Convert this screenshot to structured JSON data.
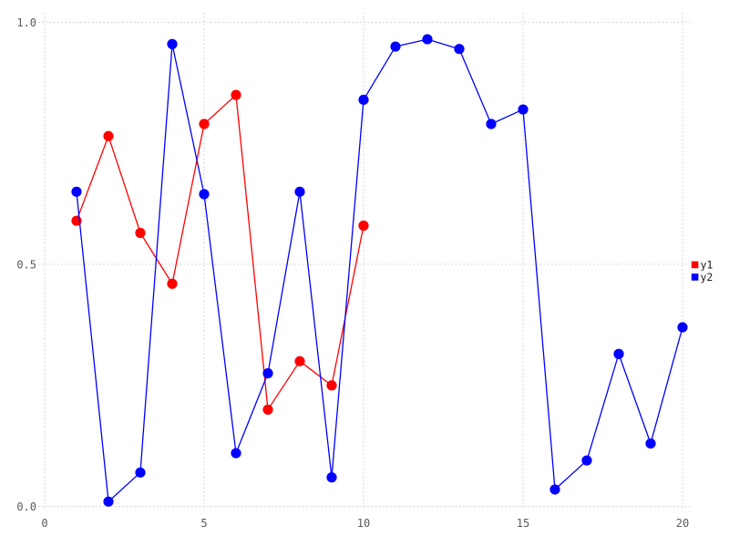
{
  "chart_data": {
    "type": "line",
    "title": "",
    "xlabel": "",
    "ylabel": "",
    "xlim": [
      0,
      20
    ],
    "ylim": [
      0.0,
      1.0
    ],
    "grid": "dotted",
    "x_ticks": {
      "values": [
        0,
        5,
        10,
        15,
        20
      ],
      "labels": [
        "0",
        "5",
        "10",
        "15",
        "20"
      ]
    },
    "y_ticks": {
      "values": [
        0.0,
        0.5,
        1.0
      ],
      "labels": [
        "0.0",
        "0.5",
        "1.0"
      ]
    },
    "legend": {
      "position": "right-middle",
      "items": [
        {
          "label": "y1",
          "color": "#ff0000"
        },
        {
          "label": "y2",
          "color": "#0000ff"
        }
      ]
    },
    "series": [
      {
        "name": "y1",
        "color": "#ff0000",
        "marker": "circle",
        "x": [
          1,
          2,
          3,
          4,
          5,
          6,
          7,
          8,
          9,
          10
        ],
        "values": [
          0.59,
          0.765,
          0.565,
          0.46,
          0.79,
          0.85,
          0.2,
          0.3,
          0.25,
          0.58
        ]
      },
      {
        "name": "y2",
        "color": "#0000ff",
        "marker": "circle",
        "x": [
          1,
          2,
          3,
          4,
          5,
          6,
          7,
          8,
          9,
          10,
          11,
          12,
          13,
          14,
          15,
          16,
          17,
          18,
          19,
          20
        ],
        "values": [
          0.65,
          0.01,
          0.07,
          0.955,
          0.645,
          0.11,
          0.275,
          0.65,
          0.06,
          0.84,
          0.95,
          0.965,
          0.945,
          0.79,
          0.82,
          0.035,
          0.095,
          0.315,
          0.13,
          0.37
        ]
      }
    ]
  },
  "colors": {
    "background": "#ffffff",
    "grid": "#ccccdb",
    "tick_label": "#5a5a60",
    "legend_text": "#1c1c1c"
  }
}
